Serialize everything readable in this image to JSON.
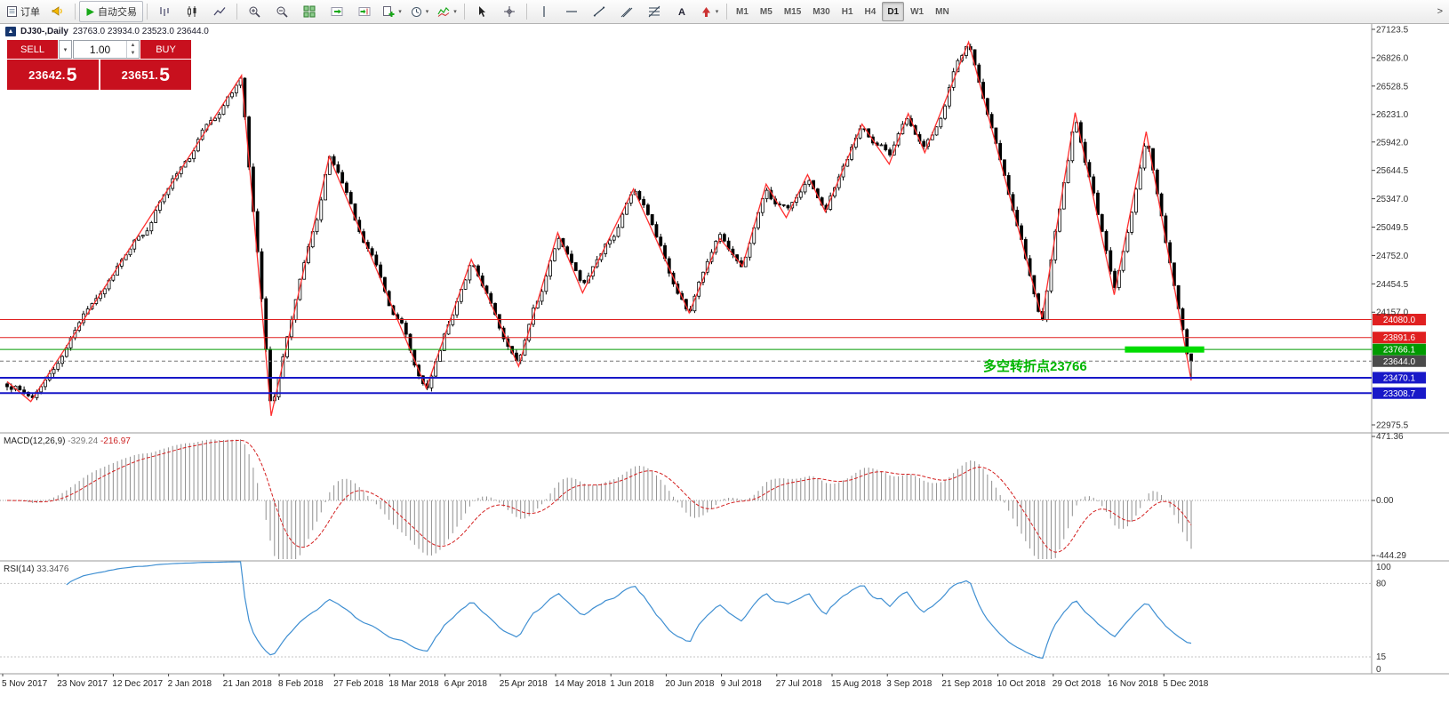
{
  "toolbar": {
    "items": [
      {
        "name": "orders-button",
        "icon": "document",
        "label": "订单"
      },
      {
        "name": "alerts-button",
        "icon": "megaphone"
      },
      {
        "type": "sep"
      },
      {
        "name": "autotrade-button",
        "icon": "play",
        "label": "自动交易",
        "framed": true
      },
      {
        "type": "sep"
      },
      {
        "name": "bar-chart-button",
        "icon": "bars"
      },
      {
        "name": "candle-chart-button",
        "icon": "candles",
        "active": true
      },
      {
        "name": "line-chart-button",
        "icon": "line-chart"
      },
      {
        "type": "sep"
      },
      {
        "name": "zoom-in-button",
        "icon": "zoom-in"
      },
      {
        "name": "zoom-out-button",
        "icon": "zoom-out"
      },
      {
        "name": "tile-windows-button",
        "icon": "grid"
      },
      {
        "name": "auto-scroll-button",
        "icon": "auto-scroll"
      },
      {
        "name": "chart-shift-button",
        "icon": "chart-shift"
      },
      {
        "name": "new-order-button",
        "icon": "new-order",
        "caret": true
      },
      {
        "name": "period-button",
        "icon": "clock",
        "caret": true
      },
      {
        "name": "indicators-button",
        "icon": "indicator",
        "caret": true
      },
      {
        "type": "sep"
      },
      {
        "name": "cursor-button",
        "icon": "cursor"
      },
      {
        "name": "crosshair-button",
        "icon": "crosshair"
      },
      {
        "type": "sep"
      },
      {
        "name": "vline-button",
        "icon": "vline"
      },
      {
        "name": "hline-button",
        "icon": "hline"
      },
      {
        "name": "trendline-button",
        "icon": "trendline"
      },
      {
        "name": "channel-button",
        "icon": "channel"
      },
      {
        "name": "fibo-button",
        "icon": "fibo"
      },
      {
        "name": "text-button",
        "icon": "text"
      },
      {
        "name": "arrows-button",
        "icon": "arrow",
        "caret": true
      },
      {
        "type": "sep"
      }
    ],
    "timeframes": [
      "M1",
      "M5",
      "M15",
      "M30",
      "H1",
      "H4",
      "D1",
      "W1",
      "MN"
    ],
    "active_timeframe": "D1",
    "overflow_glyph": ">"
  },
  "chart_header": {
    "collapse_glyph": "▲",
    "title": "DJ30-,Daily",
    "ohlc": "23763.0 23934.0 23523.0 23644.0"
  },
  "trade_panel": {
    "sell_label": "SELL",
    "buy_label": "BUY",
    "volume": "1.00",
    "sell_price_main": "23642.",
    "sell_price_big": "5",
    "buy_price_main": "23651.",
    "buy_price_big": "5"
  },
  "annotation": {
    "text": "多空转折点23766",
    "color": "#00b400"
  },
  "chart_data": {
    "type": "candlestick",
    "symbol": "DJ30-",
    "timeframe": "Daily",
    "ohlc_display": {
      "open": "23763.0",
      "high": "23934.0",
      "low": "23523.0",
      "close": "23644.0"
    },
    "bars": 280,
    "noise_amplitude": 90,
    "wick_amplitude": 38,
    "last_close": 23644.0,
    "zigzag_points": [
      {
        "t": 0.0,
        "p": 23430
      },
      {
        "t": 0.02,
        "p": 23220
      },
      {
        "t": 0.198,
        "p": 26640
      },
      {
        "t": 0.223,
        "p": 23070
      },
      {
        "t": 0.272,
        "p": 25790
      },
      {
        "t": 0.354,
        "p": 23360
      },
      {
        "t": 0.392,
        "p": 24710
      },
      {
        "t": 0.432,
        "p": 23590
      },
      {
        "t": 0.465,
        "p": 24990
      },
      {
        "t": 0.486,
        "p": 24360
      },
      {
        "t": 0.529,
        "p": 25450
      },
      {
        "t": 0.576,
        "p": 24150
      },
      {
        "t": 0.602,
        "p": 24930
      },
      {
        "t": 0.621,
        "p": 24640
      },
      {
        "t": 0.641,
        "p": 25500
      },
      {
        "t": 0.658,
        "p": 25150
      },
      {
        "t": 0.676,
        "p": 25600
      },
      {
        "t": 0.691,
        "p": 25210
      },
      {
        "t": 0.722,
        "p": 26130
      },
      {
        "t": 0.745,
        "p": 25710
      },
      {
        "t": 0.761,
        "p": 26240
      },
      {
        "t": 0.775,
        "p": 25830
      },
      {
        "t": 0.812,
        "p": 26990
      },
      {
        "t": 0.874,
        "p": 24100
      },
      {
        "t": 0.902,
        "p": 26250
      },
      {
        "t": 0.935,
        "p": 24340
      },
      {
        "t": 0.962,
        "p": 26050
      },
      {
        "t": 1.0,
        "p": 23440
      }
    ],
    "price_axis": {
      "ticks": [
        "27123.5",
        "26826.0",
        "26528.5",
        "26231.0",
        "25942.0",
        "25644.5",
        "25347.0",
        "25049.5",
        "24752.0",
        "24454.5",
        "24157.0",
        "22975.5"
      ]
    },
    "levels": [
      {
        "price": 24080.0,
        "label": "24080.0",
        "color": "#e02020",
        "width": 1
      },
      {
        "price": 23891.6,
        "label": "23891.6",
        "color": "#e02020",
        "width": 1
      },
      {
        "price": 23766.1,
        "label": "23766.1",
        "color": "#009a00",
        "width": 1
      },
      {
        "price": 23470.1,
        "label": "23470.1",
        "color": "#1818c8",
        "width": 2
      },
      {
        "price": 23308.7,
        "label": "23308.7",
        "color": "#1818c8",
        "width": 2
      }
    ],
    "current_price": {
      "value": 23644.0,
      "label": "23644.0",
      "badge_color": "#4a4a4a"
    },
    "highlight_segment": {
      "price": 23766.1,
      "t1": 0.944,
      "t2": 1.011,
      "color": "#00dc00",
      "thickness": 7
    },
    "zigzag_color": "#ff3030",
    "indicators": {
      "macd": {
        "label": "MACD(12,26,9)",
        "value_main": "-329.24",
        "value_signal": "-216.97",
        "axis_labels": [
          "471.36",
          "0.00",
          "-444.29"
        ],
        "range": [
          -444.29,
          471.36
        ],
        "histogram_color": "#909090",
        "signal_color": "#d42020"
      },
      "rsi": {
        "label": "RSI(14)",
        "value_text": "33.3476",
        "axis_labels": [
          "100",
          "80",
          "15",
          "0"
        ],
        "levels": [
          80,
          15
        ],
        "range": [
          0,
          100
        ],
        "line_color": "#3f8fd2"
      }
    },
    "time_axis": {
      "labels": [
        "5 Nov 2017",
        "23 Nov 2017",
        "12 Dec 2017",
        "2 Jan 2018",
        "21 Jan 2018",
        "8 Feb 2018",
        "27 Feb 2018",
        "18 Mar 2018",
        "6 Apr 2018",
        "25 Apr 2018",
        "14 May 2018",
        "1 Jun 2018",
        "20 Jun 2018",
        "9 Jul 2018",
        "27 Jul 2018",
        "15 Aug 2018",
        "3 Sep 2018",
        "21 Sep 2018",
        "10 Oct 2018",
        "29 Oct 2018",
        "16 Nov 2018",
        "5 Dec 2018"
      ]
    }
  }
}
